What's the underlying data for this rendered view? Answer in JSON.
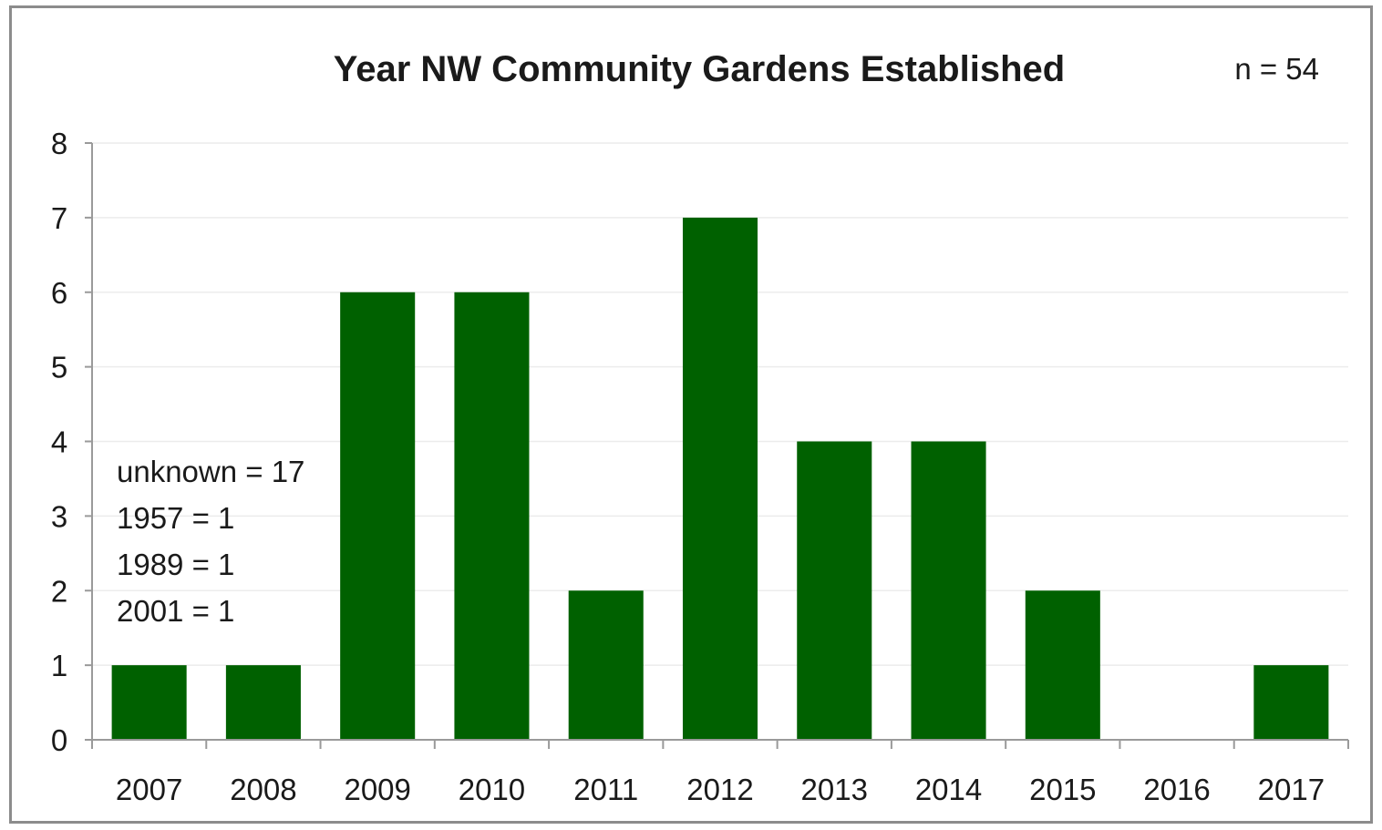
{
  "chart_data": {
    "type": "bar",
    "title": "Year NW Community Gardens Established",
    "sample_size_label": "n = 54",
    "categories": [
      "2007",
      "2008",
      "2009",
      "2010",
      "2011",
      "2012",
      "2013",
      "2014",
      "2015",
      "2016",
      "2017"
    ],
    "values": [
      1,
      1,
      6,
      6,
      2,
      7,
      4,
      4,
      2,
      0,
      1
    ],
    "y_ticks": [
      "0",
      "1",
      "2",
      "3",
      "4",
      "5",
      "6",
      "7",
      "8"
    ],
    "ylim": [
      0,
      8
    ],
    "xlabel": "",
    "ylabel": "",
    "grid": true,
    "legend": "none",
    "bar_color": "#006100",
    "annotations": [
      "unknown = 17",
      "1957 = 1",
      "1989 = 1",
      "2001 = 1"
    ]
  }
}
